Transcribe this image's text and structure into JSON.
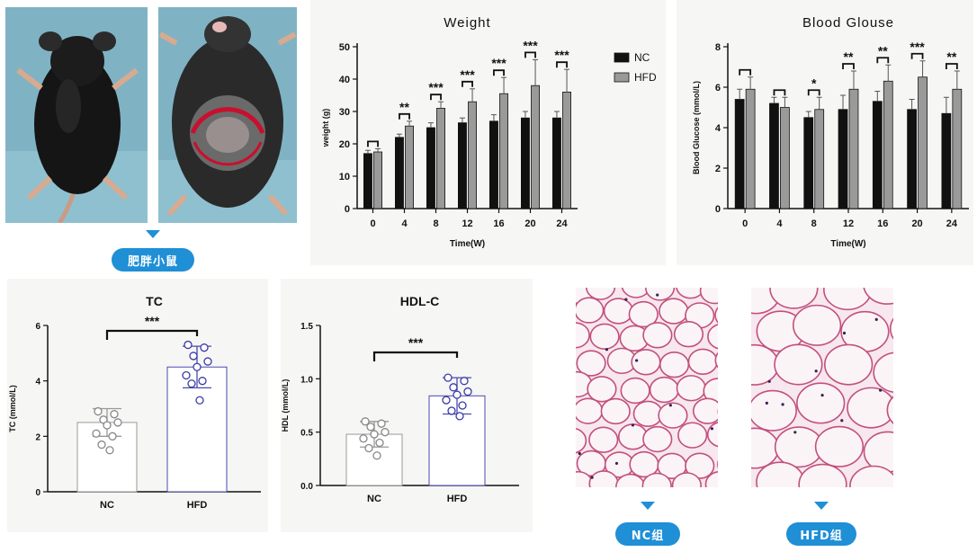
{
  "labels": {
    "mouse_label": "肥胖小鼠",
    "nc_group": "NC组",
    "hfd_group": "HFD组"
  },
  "colors": {
    "accent": "#1f8fd6",
    "nc_bar": "#111111",
    "hfd_bar": "#9a9a9a",
    "dot_nc": "#888888",
    "dot_hfd": "#3a3aa8"
  },
  "chart_data": [
    {
      "id": "weight",
      "type": "bar",
      "title": "Weight",
      "xlabel": "Time(W)",
      "ylabel": "weight (g)",
      "ylim": [
        0,
        50
      ],
      "yticks": [
        0,
        10,
        20,
        30,
        40,
        50
      ],
      "categories": [
        "0",
        "4",
        "8",
        "12",
        "16",
        "20",
        "24"
      ],
      "legend_position": "top-right",
      "series": [
        {
          "name": "NC",
          "values": [
            17,
            22,
            25,
            26.5,
            27,
            28,
            28
          ],
          "errors": [
            1,
            1,
            1.5,
            1.5,
            2,
            2,
            2
          ]
        },
        {
          "name": "HFD",
          "values": [
            17.5,
            25.5,
            31,
            33,
            35.5,
            38,
            36
          ],
          "errors": [
            1,
            1.5,
            2,
            4,
            5,
            8,
            7
          ]
        }
      ],
      "significance": [
        "",
        "**",
        "***",
        "***",
        "***",
        "***",
        "***"
      ]
    },
    {
      "id": "glucose",
      "type": "bar",
      "title": "Blood Glouse",
      "xlabel": "Time(W)",
      "ylabel": "Blood Glucose (mmol/L)",
      "ylim": [
        0,
        8
      ],
      "yticks": [
        0,
        2,
        4,
        6,
        8
      ],
      "categories": [
        "0",
        "4",
        "8",
        "12",
        "16",
        "20",
        "24"
      ],
      "series": [
        {
          "name": "NC",
          "values": [
            5.4,
            5.2,
            4.5,
            4.9,
            5.3,
            4.9,
            4.7
          ],
          "errors": [
            0.5,
            0.3,
            0.3,
            0.7,
            0.5,
            0.5,
            0.8
          ]
        },
        {
          "name": "HFD",
          "values": [
            5.9,
            5.0,
            4.9,
            5.9,
            6.3,
            6.5,
            5.9
          ],
          "errors": [
            0.6,
            0.5,
            0.6,
            0.9,
            0.8,
            0.8,
            0.9
          ]
        }
      ],
      "significance": [
        "",
        "",
        "*",
        "**",
        "**",
        "***",
        "**"
      ]
    },
    {
      "id": "tc",
      "type": "bar",
      "title": "TC",
      "ylabel": "TC (mmol/L)",
      "ylim": [
        0,
        6
      ],
      "yticks": [
        0,
        2,
        4,
        6
      ],
      "categories": [
        "NC",
        "HFD"
      ],
      "values": [
        2.5,
        4.5
      ],
      "errors": [
        0.5,
        0.75
      ],
      "points": [
        [
          2.9,
          2.8,
          2.6,
          2.5,
          2.4,
          2.1,
          2.0,
          1.7,
          1.5
        ],
        [
          5.3,
          5.2,
          4.9,
          4.7,
          4.5,
          4.2,
          4.0,
          3.9,
          3.3
        ]
      ],
      "significance": "***"
    },
    {
      "id": "hdl",
      "type": "bar",
      "title": "HDL-C",
      "ylabel": "HDL (mmol/L)",
      "ylim": [
        0,
        1.5
      ],
      "yticks": [
        0.0,
        0.5,
        1.0,
        1.5
      ],
      "categories": [
        "NC",
        "HFD"
      ],
      "values": [
        0.48,
        0.84
      ],
      "errors": [
        0.12,
        0.17
      ],
      "points": [
        [
          0.6,
          0.58,
          0.55,
          0.5,
          0.48,
          0.44,
          0.4,
          0.35,
          0.28
        ],
        [
          1.01,
          0.98,
          0.92,
          0.88,
          0.85,
          0.8,
          0.75,
          0.7,
          0.65
        ]
      ],
      "significance": "***"
    }
  ]
}
